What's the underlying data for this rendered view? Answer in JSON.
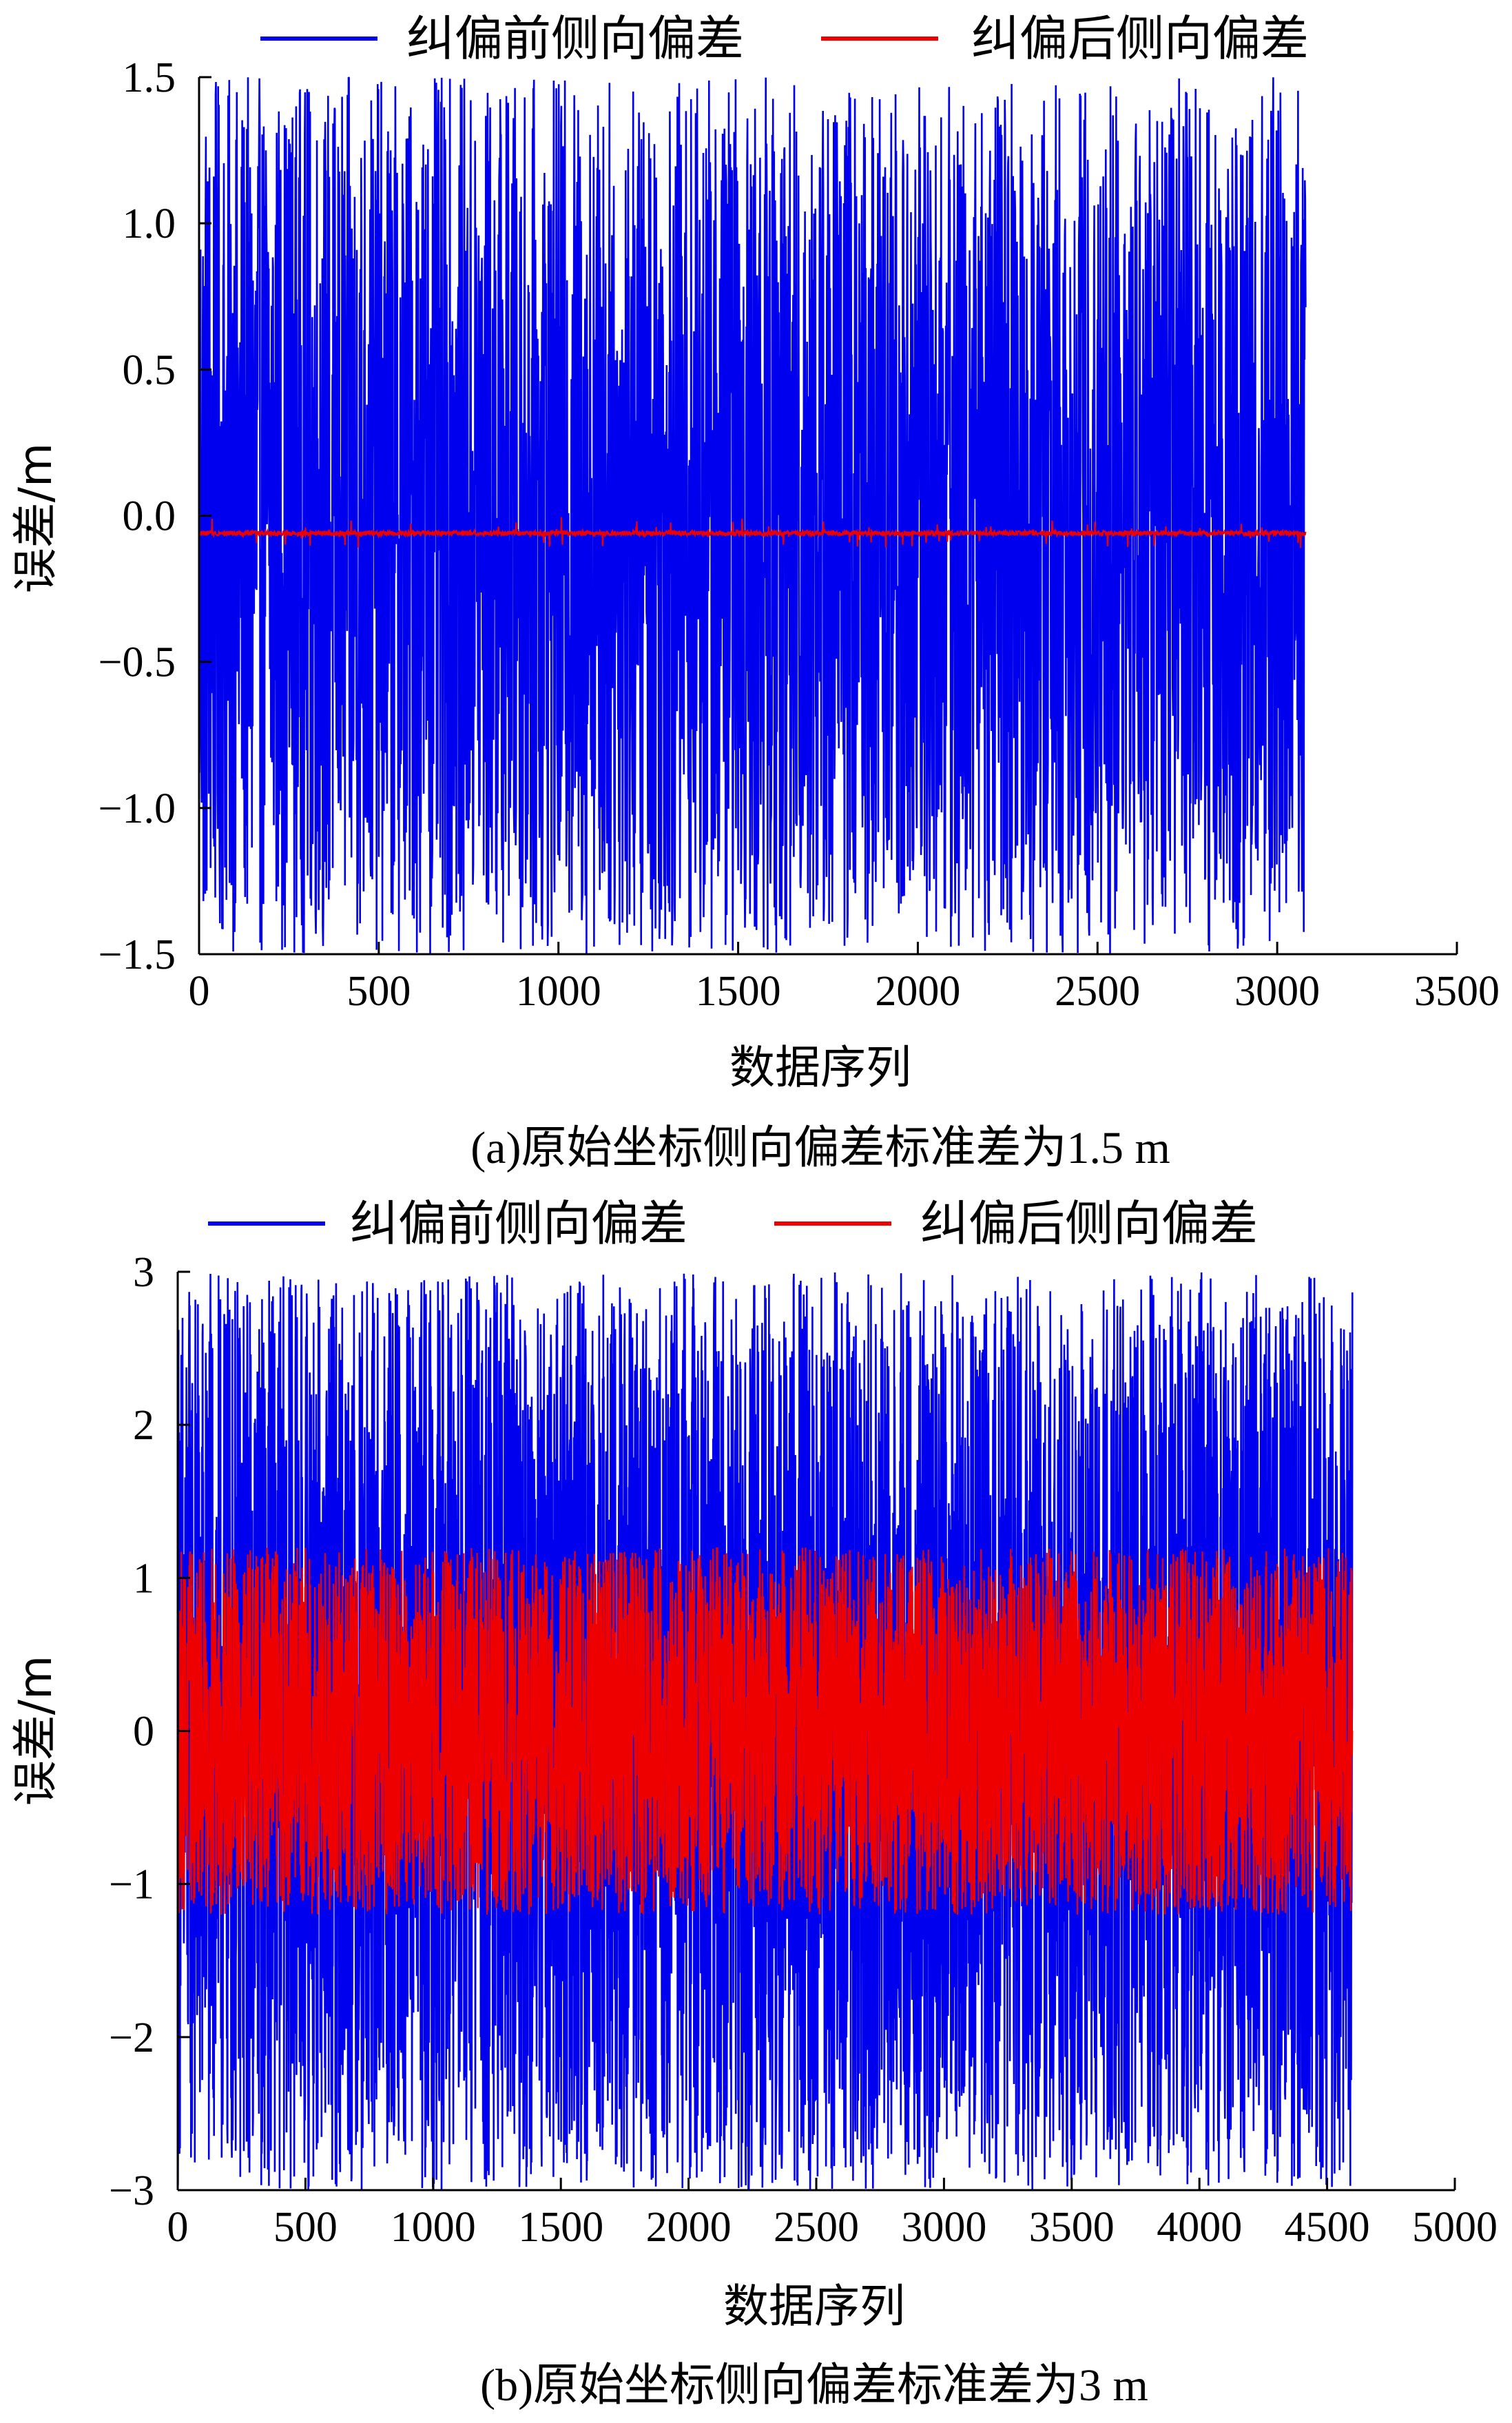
{
  "chart_data": [
    {
      "type": "line",
      "caption": "(a)原始坐标侧向偏差标准差为1.5 m",
      "xlabel": "数据序列",
      "ylabel": "误差/m",
      "xlim": [
        0,
        3500
      ],
      "ylim": [
        -1.5,
        1.5
      ],
      "xticks": [
        0,
        500,
        1000,
        1500,
        2000,
        2500,
        3000,
        3500
      ],
      "xtick_labels": [
        "0",
        "500",
        "1000",
        "1500",
        "2000",
        "2500",
        "3000",
        "3500"
      ],
      "yticks": [
        1.5,
        1.0,
        0.5,
        0.0,
        -0.5,
        -1.0,
        -1.5
      ],
      "ytick_labels": [
        "1.5",
        "1.0",
        "0.5",
        "0.0",
        "−0.5",
        "−1.0",
        "−1.5"
      ],
      "legend_position": "top",
      "grid": false,
      "series": [
        {
          "name": "纠偏前侧向偏差",
          "color": "#0000ee",
          "n_points": 3080,
          "mean": 0.0,
          "amplitude": 1.5
        },
        {
          "name": "纠偏后侧向偏差",
          "color": "#ee0000",
          "n_points": 3080,
          "mean": -0.06,
          "amplitude": 0.05
        }
      ]
    },
    {
      "type": "line",
      "caption": "(b)原始坐标侧向偏差标准差为3 m",
      "xlabel": "数据序列",
      "ylabel": "误差/m",
      "xlim": [
        0,
        5000
      ],
      "ylim": [
        -3,
        3
      ],
      "xticks": [
        0,
        500,
        1000,
        1500,
        2000,
        2500,
        3000,
        3500,
        4000,
        4500,
        5000
      ],
      "xtick_labels": [
        "0",
        "500",
        "1000",
        "1500",
        "2000",
        "2500",
        "3000",
        "3500",
        "4000",
        "4500",
        "5000"
      ],
      "yticks": [
        3,
        2,
        1,
        0,
        -1,
        -2,
        -3
      ],
      "ytick_labels": [
        "3",
        "2",
        "1",
        "0",
        "−1",
        "−2",
        "−3"
      ],
      "legend_position": "top",
      "grid": false,
      "series": [
        {
          "name": "纠偏前侧向偏差",
          "color": "#0000ee",
          "n_points": 4600,
          "mean": 0.0,
          "amplitude": 3.0
        },
        {
          "name": "纠偏后侧向偏差",
          "color": "#ee0000",
          "n_points": 4600,
          "mean": 0.0,
          "amplitude": 1.2
        }
      ]
    }
  ]
}
